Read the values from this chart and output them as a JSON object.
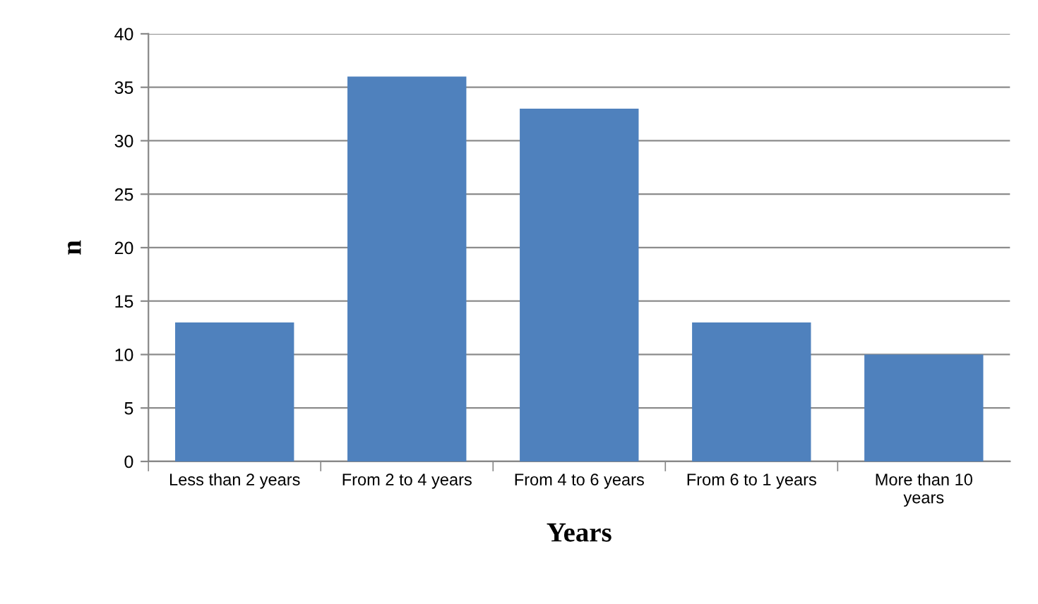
{
  "chart_data": {
    "type": "bar",
    "xlabel": "Years",
    "ylabel": "n",
    "categories": [
      "Less than 2 years",
      "From 2 to 4 years",
      "From 4 to 6 years",
      "From 6 to 1 years",
      "More than 10\nyears"
    ],
    "values": [
      13,
      36,
      33,
      13,
      10
    ],
    "color": "#4f81bd",
    "ylim": [
      0,
      40
    ],
    "yticks": [
      0,
      5,
      10,
      15,
      20,
      25,
      30,
      35,
      40
    ],
    "grid": "y",
    "legend": false
  }
}
